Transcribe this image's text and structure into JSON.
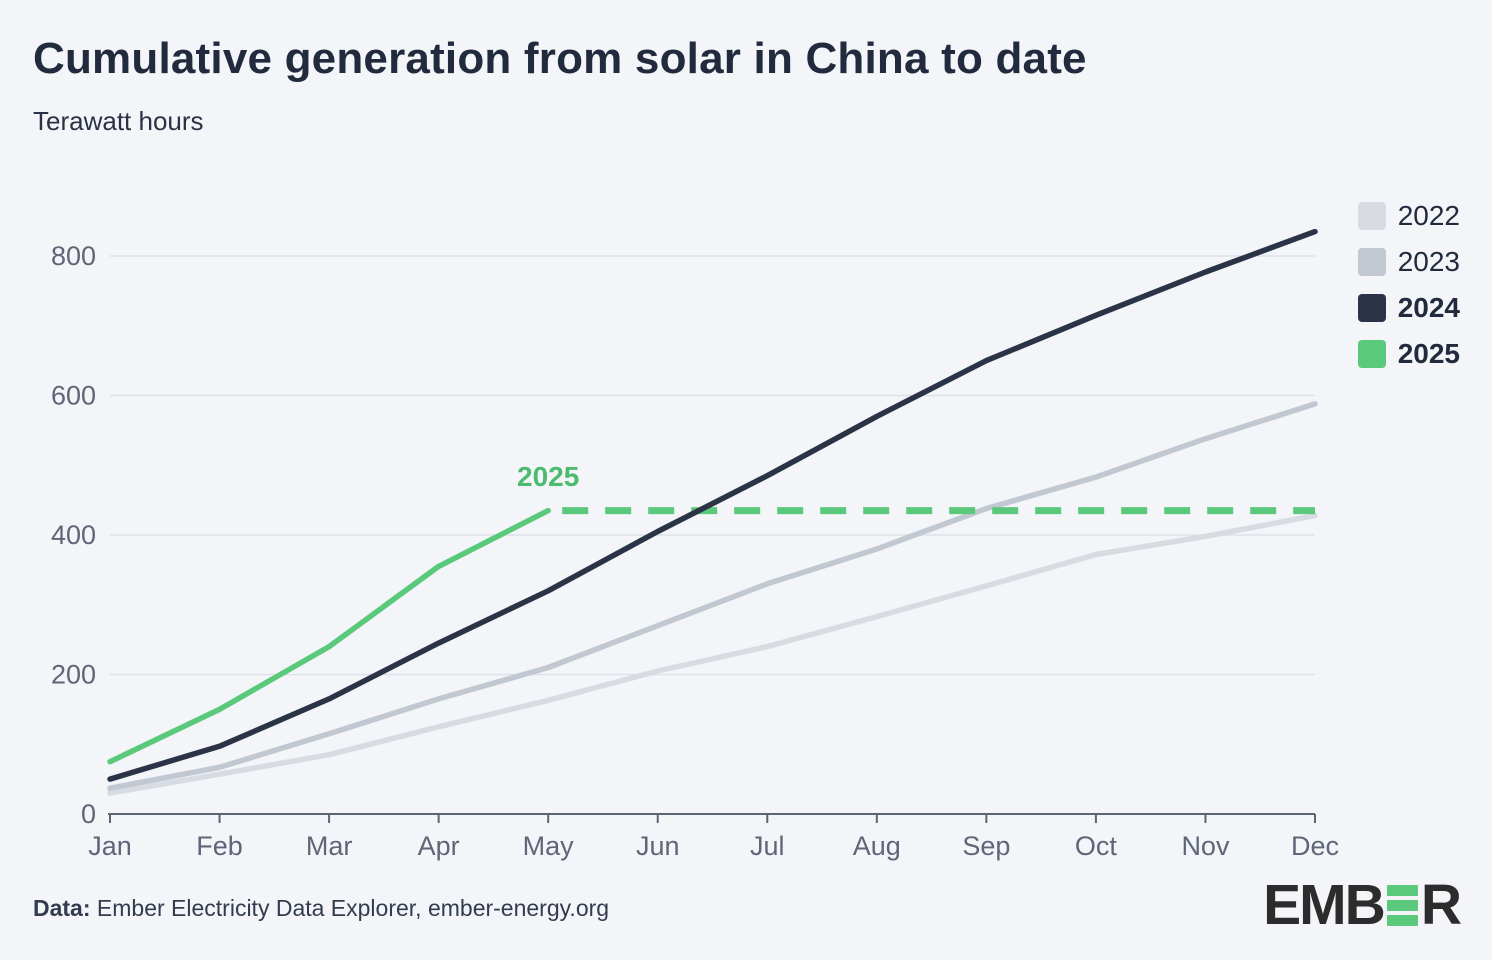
{
  "header": {
    "title": "Cumulative generation from solar in China to date",
    "subtitle": "Terawatt hours"
  },
  "chart_data": {
    "type": "line",
    "title": "Cumulative generation from solar in China to date",
    "ylabel": "Terawatt hours",
    "xlabel": "",
    "x_categories": [
      "Jan",
      "Feb",
      "Mar",
      "Apr",
      "May",
      "Jun",
      "Jul",
      "Aug",
      "Sep",
      "Oct",
      "Nov",
      "Dec"
    ],
    "y_ticks": [
      0,
      200,
      400,
      600,
      800
    ],
    "ylim": [
      0,
      870
    ],
    "grid": true,
    "legend_position": "top-right",
    "series": [
      {
        "name": "2022",
        "color": "#d8dce2",
        "bold": false,
        "values": [
          30,
          57,
          85,
          125,
          163,
          205,
          240,
          283,
          327,
          372,
          398,
          428
        ]
      },
      {
        "name": "2023",
        "color": "#c2c8d1",
        "bold": false,
        "values": [
          37,
          67,
          115,
          165,
          210,
          270,
          330,
          380,
          438,
          483,
          538,
          588
        ]
      },
      {
        "name": "2024",
        "color": "#2b3447",
        "bold": true,
        "values": [
          50,
          97,
          165,
          245,
          320,
          405,
          485,
          570,
          650,
          715,
          777,
          835
        ]
      },
      {
        "name": "2025",
        "color": "#5bc97b",
        "bold": true,
        "values": [
          75,
          150,
          240,
          355,
          435
        ]
      }
    ],
    "annotations": [
      {
        "type": "label",
        "text": "2025",
        "month": "May",
        "value": 470,
        "color": "#4cbb6e"
      },
      {
        "type": "dashed-projection",
        "series": "2025",
        "value": 435,
        "from": "May",
        "to": "Dec",
        "color": "#5bc97b"
      }
    ]
  },
  "footer": {
    "data_label": "Data:",
    "data_text": " Ember Electricity Data Explorer, ember-energy.org",
    "logo_left": "EMB",
    "logo_right": "R"
  }
}
